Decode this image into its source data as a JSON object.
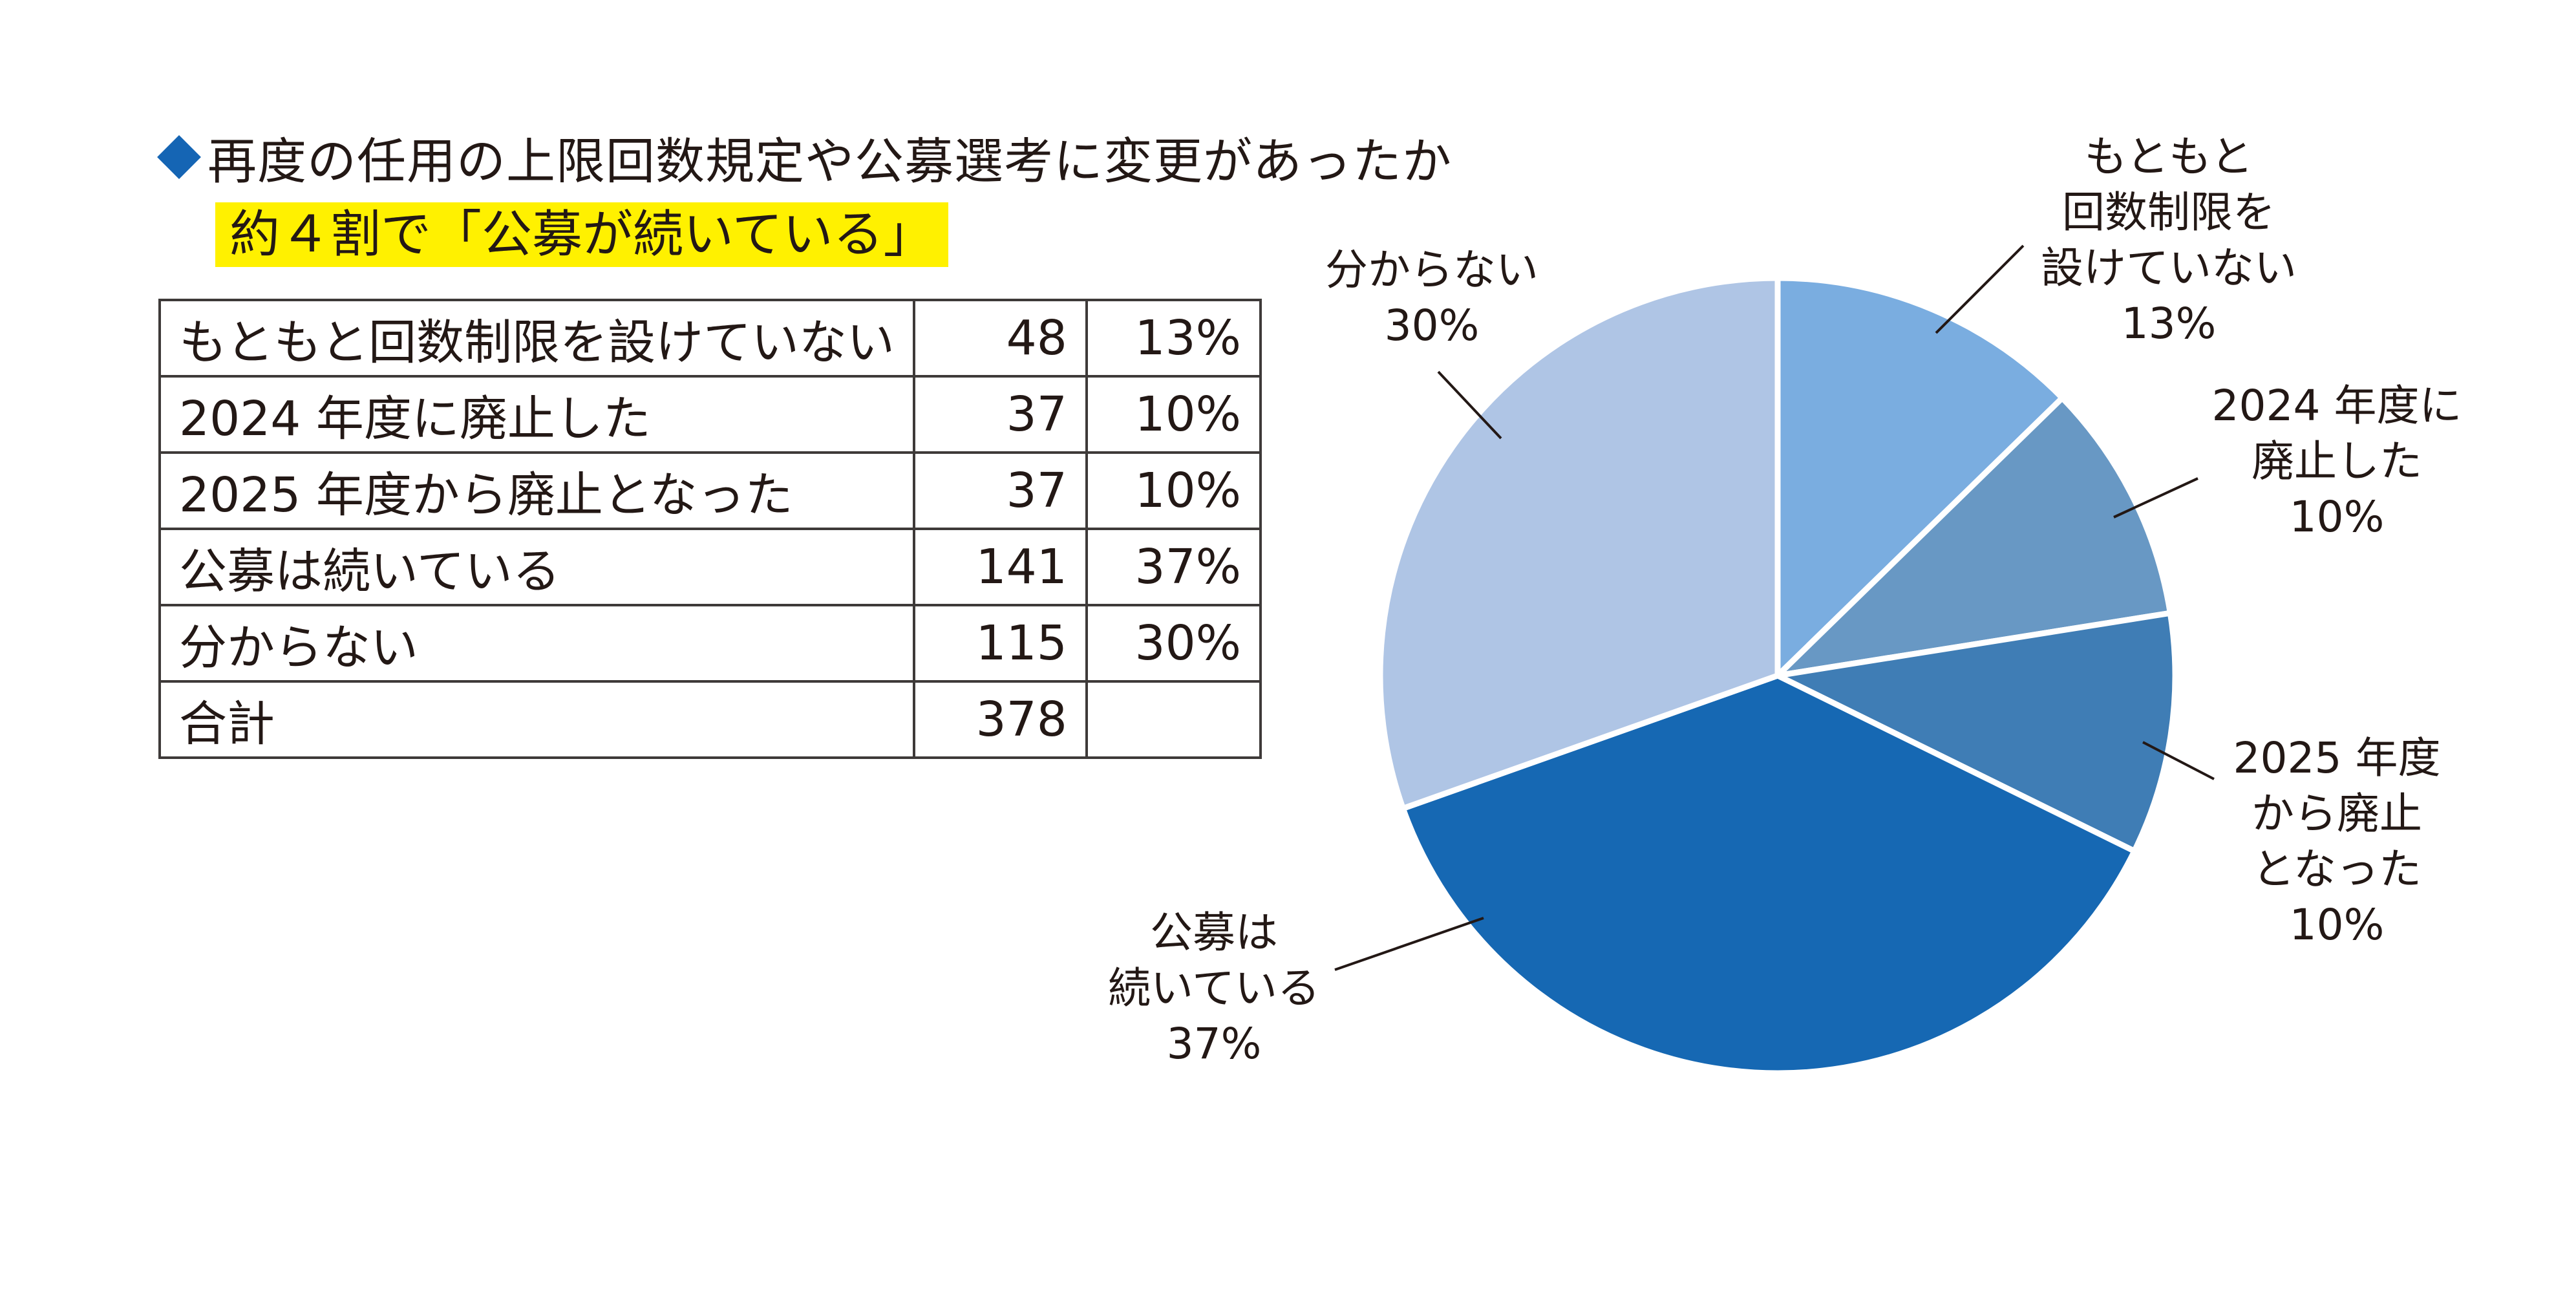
{
  "title": "再度の任用の上限回数規定や公募選考に変更があったか",
  "highlight": "約４割で「公募が続いている」",
  "table": {
    "rows": [
      {
        "label": "もともと回数制限を設けていない",
        "count": "48",
        "pct": "13%"
      },
      {
        "label": "2024 年度に廃止した",
        "count": "37",
        "pct": "10%"
      },
      {
        "label": "2025 年度から廃止となった",
        "count": "37",
        "pct": "10%"
      },
      {
        "label": "公募は続いている",
        "count": "141",
        "pct": "37%"
      },
      {
        "label": "分からない",
        "count": "115",
        "pct": "30%"
      }
    ],
    "total": {
      "label": "合計",
      "count": "378",
      "pct": ""
    }
  },
  "chart_data": {
    "type": "pie",
    "title": "再度の任用の上限回数規定や公募選考に変更があったか",
    "start": "12 o'clock",
    "direction": "clockwise",
    "total": 378,
    "slices": [
      {
        "name": "もともと回数制限を設けていない",
        "value": 48,
        "percent": "13%",
        "color": "#7aade0",
        "label_lines": [
          "もともと",
          "回数制限を",
          "設けていない",
          "13%"
        ]
      },
      {
        "name": "2024 年度に廃止した",
        "value": 37,
        "percent": "10%",
        "color": "#6898c4",
        "label_lines": [
          "2024 年度に",
          "廃止した",
          "10%"
        ]
      },
      {
        "name": "2025 年度から廃止となった",
        "value": 37,
        "percent": "10%",
        "color": "#3f7db5",
        "label_lines": [
          "2025 年度",
          "から廃止",
          "となった",
          "10%"
        ]
      },
      {
        "name": "公募は続いている",
        "value": 141,
        "percent": "37%",
        "color": "#1668b3",
        "label_lines": [
          "公募は",
          "続いている",
          "37%"
        ]
      },
      {
        "name": "分からない",
        "value": 115,
        "percent": "30%",
        "color": "#afc5e5",
        "label_lines": [
          "分からない",
          "30%"
        ]
      }
    ]
  },
  "colors": {
    "accent": "#1565b4",
    "highlight": "#fff100",
    "border": "#3e3a39",
    "line": "#231815"
  }
}
